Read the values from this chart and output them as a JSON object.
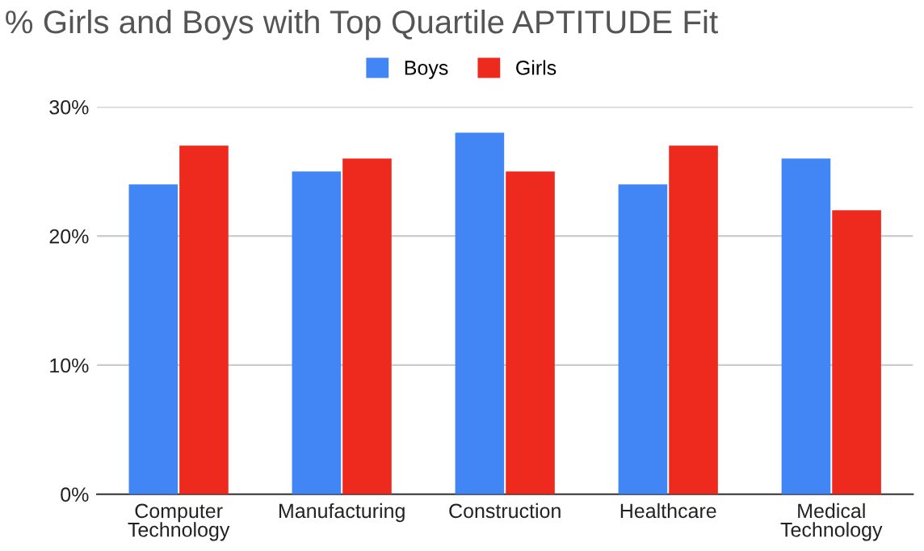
{
  "chart_data": {
    "type": "bar",
    "title": "% Girls and Boys with Top Quartile APTITUDE Fit",
    "categories": [
      "Computer Technology",
      "Manufacturing",
      "Construction",
      "Healthcare",
      "Medical Technology"
    ],
    "series": [
      {
        "name": "Boys",
        "color": "#4285f4",
        "values": [
          24,
          25,
          28,
          24,
          26
        ]
      },
      {
        "name": "Girls",
        "color": "#ee2a1e",
        "values": [
          27,
          26,
          25,
          27,
          22
        ]
      }
    ],
    "ylim": [
      0,
      30
    ],
    "yticks": [
      {
        "value": 0,
        "label": "0%"
      },
      {
        "value": 10,
        "label": "10%"
      },
      {
        "value": 20,
        "label": "20%"
      },
      {
        "value": 30,
        "label": "30%"
      }
    ],
    "grid": "y",
    "legend": "top"
  }
}
